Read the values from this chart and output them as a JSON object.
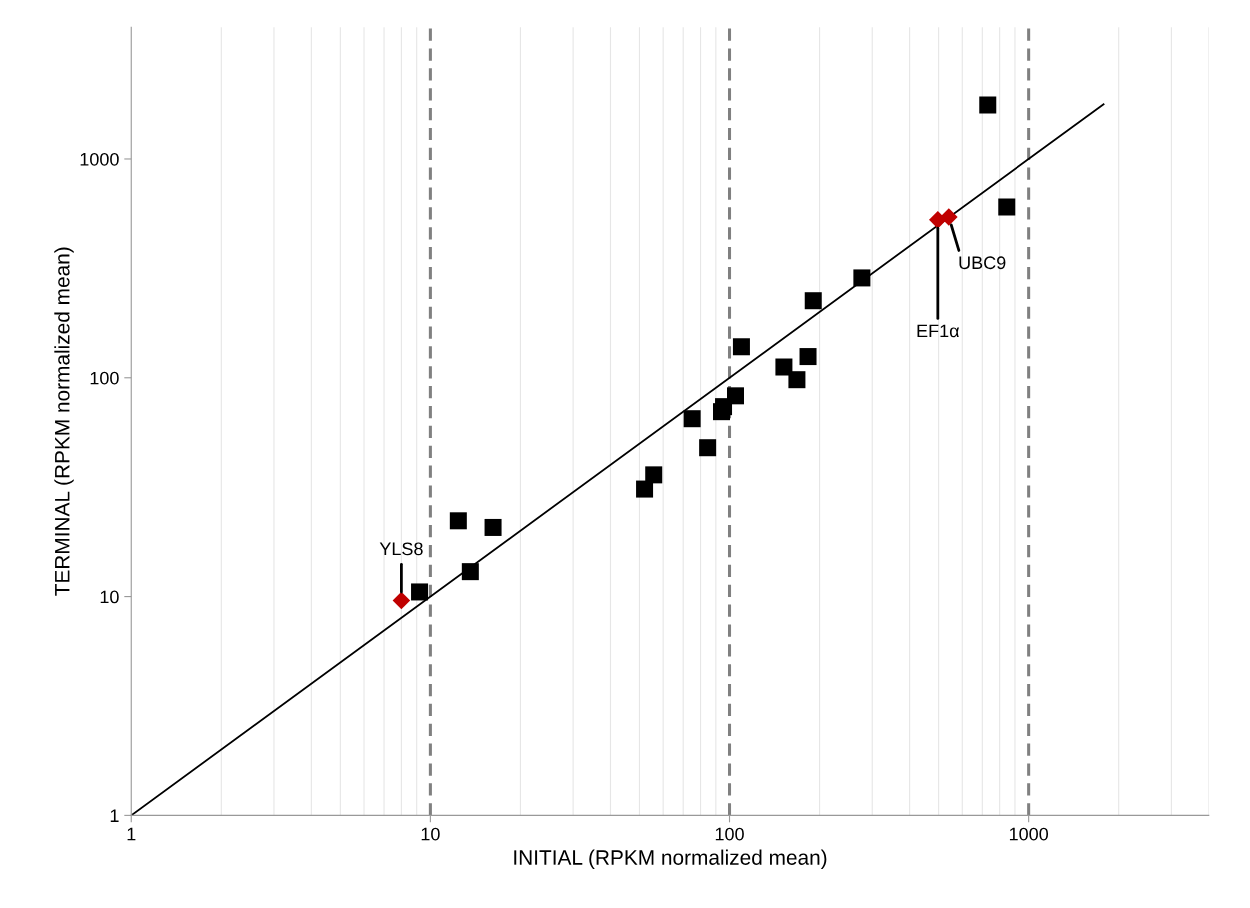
{
  "chart_data": {
    "type": "scatter",
    "xlabel": "INITIAL (RPKM normalized mean)",
    "ylabel": "TERMINAL (RPKM normalized mean)",
    "log": "xy",
    "xlim": [
      1,
      4000
    ],
    "ylim": [
      1,
      4000
    ],
    "xticks": [
      1,
      10,
      100,
      1000
    ],
    "yticks": [
      1,
      10,
      100,
      1000
    ],
    "grid": "x",
    "series": [
      {
        "marker": "square",
        "color": "#000000",
        "x": [
          9.2,
          12.4,
          13.6,
          16.2,
          52,
          55.8,
          75,
          84.5,
          94,
          95.5,
          104.7,
          109.6,
          152,
          168,
          183,
          190.5,
          277,
          730,
          845
        ],
        "values": [
          10.5,
          22.2,
          13.0,
          20.7,
          31,
          36,
          65,
          47.9,
          70,
          73.8,
          82.7,
          138.6,
          112,
          98,
          125,
          225,
          286,
          1765,
          604
        ]
      },
      {
        "marker": "diamond",
        "color": "#c00000",
        "x": [
          8.0,
          497,
          541
        ],
        "values": [
          9.6,
          527,
          543
        ]
      },
      {
        "type": "line",
        "marker": "none",
        "color": "#000000",
        "x": [
          1,
          1780
        ],
        "values": [
          1,
          1780
        ]
      }
    ],
    "ref_lines": [
      {
        "axis": "x",
        "value": 10,
        "color": "#808080",
        "line_style": "dashed"
      },
      {
        "axis": "x",
        "value": 100,
        "color": "#808080",
        "line_style": "dashed"
      },
      {
        "axis": "x",
        "value": 1000,
        "color": "#808080",
        "line_style": "dashed"
      }
    ],
    "annotations": [
      {
        "text": "YLS8",
        "x": 8.0,
        "y": 9.6
      },
      {
        "text": "EF1α",
        "x": 497,
        "y": 527
      },
      {
        "text": "UBC9",
        "x": 541,
        "y": 543
      }
    ]
  }
}
